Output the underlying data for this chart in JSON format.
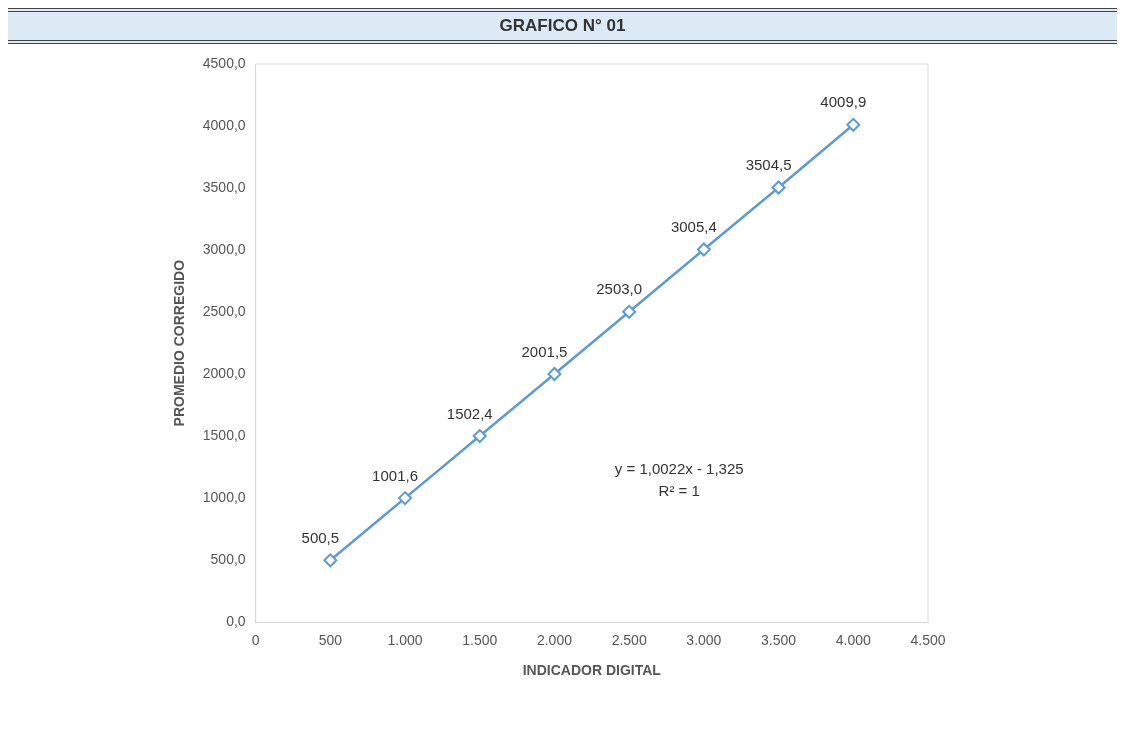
{
  "chart_data": {
    "type": "line",
    "title": "GRAFICO N° 01",
    "xlabel": "INDICADOR DIGITAL",
    "ylabel": "PROMEDIO CORREGIDO",
    "x": [
      500,
      1000,
      1500,
      2000,
      2500,
      3000,
      3500,
      4000
    ],
    "series": [
      {
        "color": "#5b9bd5",
        "values": [
          500.5,
          1001.6,
          1502.4,
          2001.5,
          2503.0,
          3005.4,
          3504.5,
          4009.9
        ],
        "value_labels": [
          "500,5",
          "1001,6",
          "1502,4",
          "2001,5",
          "2503,0",
          "3005,4",
          "3504,5",
          "4009,9"
        ]
      }
    ],
    "xlim": [
      0,
      4500
    ],
    "xticks": [
      0,
      500,
      {
        "value": 1000,
        "label": "1.000"
      },
      {
        "value": 1500,
        "label": "1.500"
      },
      {
        "value": 2000,
        "label": "2.000"
      },
      {
        "value": 2500,
        "label": "2.500"
      },
      {
        "value": 3000,
        "label": "3.000"
      },
      {
        "value": 3500,
        "label": "3.500"
      },
      {
        "value": 4000,
        "label": "4.000"
      },
      {
        "value": 4500,
        "label": "4.500"
      }
    ],
    "ylim": [
      0,
      4500
    ],
    "yticks": [
      {
        "value": 0,
        "label": "0,0"
      },
      {
        "value": 500,
        "label": "500,0"
      },
      {
        "value": 1000,
        "label": "1000,0"
      },
      {
        "value": 1500,
        "label": "1500,0"
      },
      {
        "value": 2000,
        "label": "2000,0"
      },
      {
        "value": 2500,
        "label": "2500,0"
      },
      {
        "value": 3000,
        "label": "3000,0"
      },
      {
        "value": 3500,
        "label": "3500,0"
      },
      {
        "value": 4000,
        "label": "4000,0"
      },
      {
        "value": 4500,
        "label": "4500,0"
      }
    ],
    "annotations": [
      "y = 1,0022x - 1,325",
      "R² = 1"
    ],
    "grid": false,
    "legend": false,
    "marker": "diamond",
    "line_style": "solid"
  }
}
